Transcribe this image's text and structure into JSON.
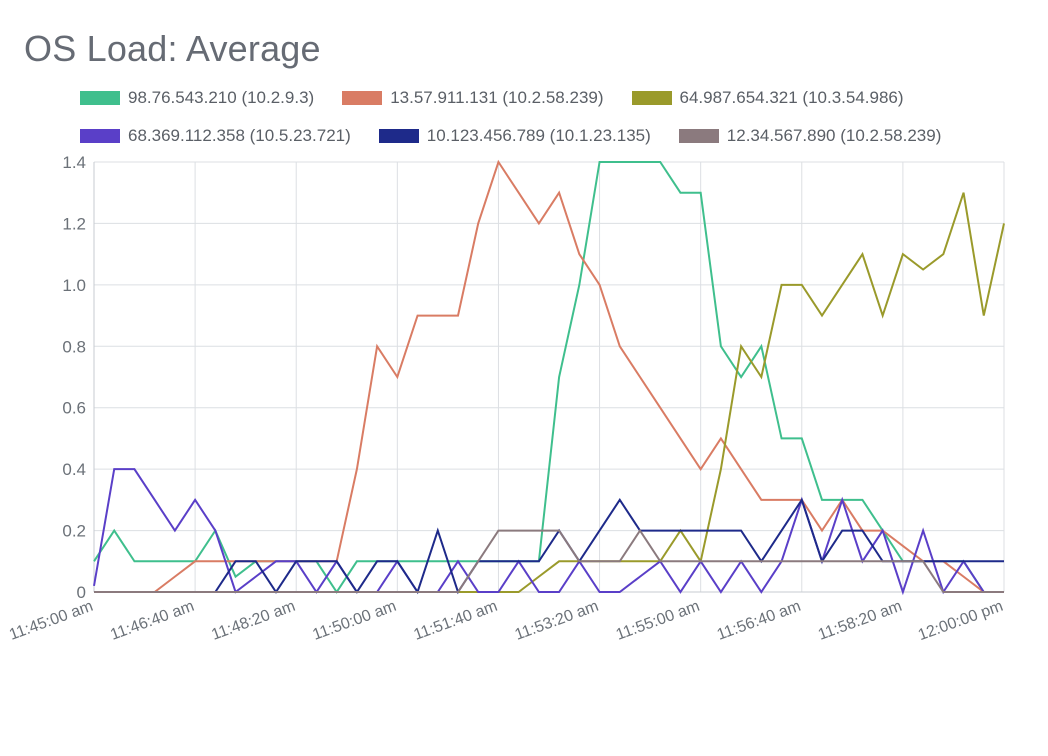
{
  "title": "OS Load: Average",
  "chart": {
    "type": "line",
    "background_color": "#ffffff",
    "grid_color": "#dcdfe3",
    "axis_color": "#c7cbd1",
    "title_color": "#666b74",
    "label_color": "#6b7178",
    "title_fontsize": 36,
    "tick_fontsize": 17,
    "line_width": 2,
    "ylim": [
      0,
      1.4
    ],
    "ytick_step": 0.2,
    "yticks": [
      0,
      0.2,
      0.4,
      0.6,
      0.8,
      1.0,
      1.2,
      1.4
    ],
    "x_points": 46,
    "xticks": [
      {
        "i": 0,
        "label": "11:45:00 am"
      },
      {
        "i": 5,
        "label": "11:46:40 am"
      },
      {
        "i": 10,
        "label": "11:48:20 am"
      },
      {
        "i": 15,
        "label": "11:50:00 am"
      },
      {
        "i": 20,
        "label": "11:51:40 am"
      },
      {
        "i": 25,
        "label": "11:53:20 am"
      },
      {
        "i": 30,
        "label": "11:55:00 am"
      },
      {
        "i": 35,
        "label": "11:56:40 am"
      },
      {
        "i": 40,
        "label": "11:58:20 am"
      },
      {
        "i": 45,
        "label": "12:00:00 pm"
      }
    ],
    "xtick_rotation": -20,
    "legend": {
      "font_size": 17,
      "swatch_w": 40,
      "swatch_h": 14,
      "label_color": "#5a5f66"
    },
    "series": [
      {
        "name": "98.76.543.210 (10.2.9.3)",
        "color": "#3fbf8d",
        "values": [
          0.1,
          0.2,
          0.1,
          0.1,
          0.1,
          0.1,
          0.2,
          0.05,
          0.1,
          0.1,
          0.1,
          0.1,
          0.0,
          0.1,
          0.1,
          0.1,
          0.1,
          0.1,
          0.1,
          0.1,
          0.1,
          0.1,
          0.1,
          0.7,
          1.0,
          1.4,
          1.4,
          1.4,
          1.4,
          1.3,
          1.3,
          0.8,
          0.7,
          0.8,
          0.5,
          0.5,
          0.3,
          0.3,
          0.3,
          0.2,
          0.1,
          0.1,
          0.1,
          0.1,
          0.0,
          0.0
        ]
      },
      {
        "name": "13.57.911.131 (10.2.58.239)",
        "color": "#d97c64",
        "values": [
          0.0,
          0.0,
          0.0,
          0.0,
          0.05,
          0.1,
          0.1,
          0.1,
          0.1,
          0.1,
          0.1,
          0.1,
          0.1,
          0.4,
          0.8,
          0.7,
          0.9,
          0.9,
          0.9,
          1.2,
          1.4,
          1.3,
          1.2,
          1.3,
          1.1,
          1.0,
          0.8,
          0.7,
          0.6,
          0.5,
          0.4,
          0.5,
          0.4,
          0.3,
          0.3,
          0.3,
          0.2,
          0.3,
          0.2,
          0.2,
          0.15,
          0.1,
          0.1,
          0.05,
          0.0,
          0.0
        ]
      },
      {
        "name": "64.987.654.321 (10.3.54.986)",
        "color": "#9a9a2b",
        "values": [
          0.0,
          0.0,
          0.0,
          0.0,
          0.0,
          0.0,
          0.0,
          0.0,
          0.0,
          0.0,
          0.0,
          0.0,
          0.0,
          0.0,
          0.0,
          0.0,
          0.0,
          0.0,
          0.0,
          0.0,
          0.0,
          0.0,
          0.05,
          0.1,
          0.1,
          0.1,
          0.1,
          0.1,
          0.1,
          0.2,
          0.1,
          0.4,
          0.8,
          0.7,
          1.0,
          1.0,
          0.9,
          1.0,
          1.1,
          0.9,
          1.1,
          1.05,
          1.1,
          1.3,
          0.9,
          1.2
        ]
      },
      {
        "name": "68.369.112.358 (10.5.23.721)",
        "color": "#5a3fc8",
        "values": [
          0.02,
          0.4,
          0.4,
          0.3,
          0.2,
          0.3,
          0.2,
          0.0,
          0.05,
          0.1,
          0.1,
          0.0,
          0.1,
          0.0,
          0.0,
          0.1,
          0.0,
          0.0,
          0.1,
          0.0,
          0.0,
          0.1,
          0.0,
          0.0,
          0.1,
          0.0,
          0.0,
          0.05,
          0.1,
          0.0,
          0.1,
          0.0,
          0.1,
          0.0,
          0.1,
          0.3,
          0.1,
          0.3,
          0.1,
          0.2,
          0.0,
          0.2,
          0.0,
          0.1,
          0.0,
          0.0
        ]
      },
      {
        "name": "10.123.456.789 (10.1.23.135)",
        "color": "#1e2a8a",
        "values": [
          0.0,
          0.0,
          0.0,
          0.0,
          0.0,
          0.0,
          0.0,
          0.1,
          0.1,
          0.0,
          0.1,
          0.1,
          0.1,
          0.0,
          0.1,
          0.1,
          0.0,
          0.2,
          0.0,
          0.1,
          0.1,
          0.1,
          0.1,
          0.2,
          0.1,
          0.2,
          0.3,
          0.2,
          0.2,
          0.2,
          0.2,
          0.2,
          0.2,
          0.1,
          0.2,
          0.3,
          0.1,
          0.2,
          0.2,
          0.1,
          0.1,
          0.1,
          0.1,
          0.1,
          0.1,
          0.1
        ]
      },
      {
        "name": "12.34.567.890 (10.2.58.239)",
        "color": "#8b7a7e",
        "values": [
          0.0,
          0.0,
          0.0,
          0.0,
          0.0,
          0.0,
          0.0,
          0.0,
          0.0,
          0.0,
          0.0,
          0.0,
          0.0,
          0.0,
          0.0,
          0.0,
          0.0,
          0.0,
          0.0,
          0.1,
          0.2,
          0.2,
          0.2,
          0.2,
          0.1,
          0.1,
          0.1,
          0.2,
          0.1,
          0.1,
          0.1,
          0.1,
          0.1,
          0.1,
          0.1,
          0.1,
          0.1,
          0.1,
          0.1,
          0.1,
          0.1,
          0.1,
          0.0,
          0.0,
          0.0,
          0.0
        ]
      }
    ]
  }
}
